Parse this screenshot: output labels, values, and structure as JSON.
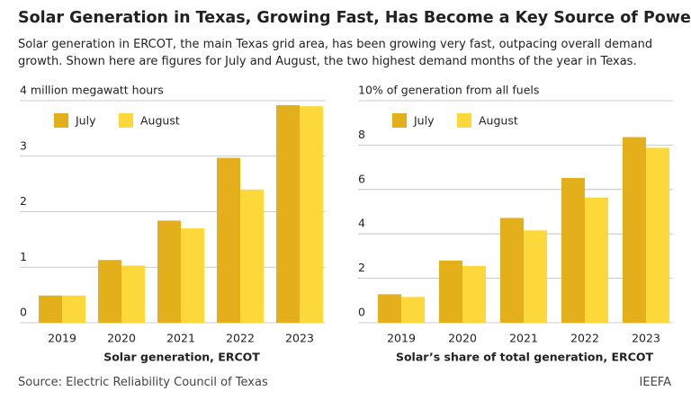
{
  "header": {
    "title": "Solar Generation in Texas, Growing Fast, Has Become a Key Source of Power",
    "subtitle": "Solar generation in ERCOT, the main Texas grid area, has been growing very fast, outpacing overall demand growth. Shown here are figures for July and August, the two highest demand months of the year in Texas."
  },
  "chart_data": [
    {
      "type": "bar",
      "xlabel": "Solar generation, ERCOT",
      "categories": [
        "2019",
        "2020",
        "2021",
        "2022",
        "2023"
      ],
      "series": [
        {
          "name": "July",
          "color": "#e3b01b",
          "values": [
            0.49,
            1.13,
            1.84,
            2.97,
            3.92
          ]
        },
        {
          "name": "August",
          "color": "#fdd83a",
          "values": [
            0.49,
            1.03,
            1.7,
            2.4,
            3.9
          ]
        }
      ],
      "ylim": [
        0,
        4
      ],
      "yticks": [
        0,
        1,
        2,
        3,
        {
          "value": 4,
          "label": "4 million megawatt hours"
        }
      ],
      "grid": true,
      "legend": "top-left"
    },
    {
      "type": "bar",
      "xlabel": "Solar’s share of total generation, ERCOT",
      "categories": [
        "2019",
        "2020",
        "2021",
        "2022",
        "2023"
      ],
      "series": [
        {
          "name": "July",
          "color": "#e3b01b",
          "values": [
            1.28,
            2.8,
            4.72,
            6.52,
            8.36
          ]
        },
        {
          "name": "August",
          "color": "#fdd83a",
          "values": [
            1.16,
            2.56,
            4.16,
            5.64,
            7.88
          ]
        }
      ],
      "ylim": [
        0,
        10
      ],
      "yticks": [
        0,
        2,
        4,
        6,
        8,
        {
          "value": 10,
          "label": "10% of generation from all fuels"
        }
      ],
      "grid": true,
      "legend": "top-left"
    }
  ],
  "footer": {
    "source": "Source: Electric Reliability Council of Texas",
    "brand": "IEEFA"
  }
}
